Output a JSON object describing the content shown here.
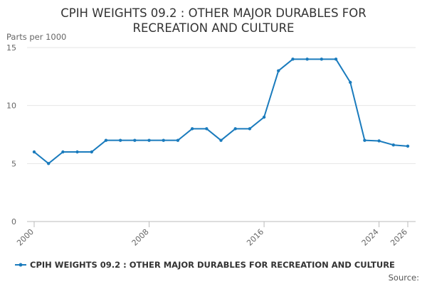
{
  "chart_data": {
    "type": "line",
    "title_lines": [
      "CPIH WEIGHTS 09.2 : OTHER MAJOR DURABLES FOR",
      "RECREATION AND CULTURE"
    ],
    "ylabel": "Parts per 1000",
    "xlabel": "",
    "ylim": [
      0,
      15
    ],
    "yticks": [
      0,
      5,
      10,
      15
    ],
    "xlim": [
      2000,
      2026
    ],
    "xticks": [
      2000,
      2008,
      2016,
      2024,
      2026
    ],
    "grid": true,
    "legend_position": "bottom",
    "series": [
      {
        "name": "CPIH WEIGHTS 09.2 : OTHER MAJOR DURABLES FOR RECREATION AND CULTURE",
        "color": "#1a7bbd",
        "x": [
          2000,
          2001,
          2002,
          2003,
          2004,
          2005,
          2006,
          2007,
          2008,
          2009,
          2010,
          2011,
          2012,
          2013,
          2014,
          2015,
          2016,
          2017,
          2018,
          2019,
          2020,
          2021,
          2022,
          2023,
          2024,
          2025,
          2026
        ],
        "values": [
          6,
          5,
          6,
          6,
          6,
          7,
          7,
          7,
          7,
          7,
          7,
          8,
          8,
          7,
          8,
          8,
          9,
          13,
          14,
          14,
          14,
          14,
          12,
          7,
          6.95,
          6.6,
          6.5
        ]
      }
    ],
    "source_label": "Source:"
  }
}
